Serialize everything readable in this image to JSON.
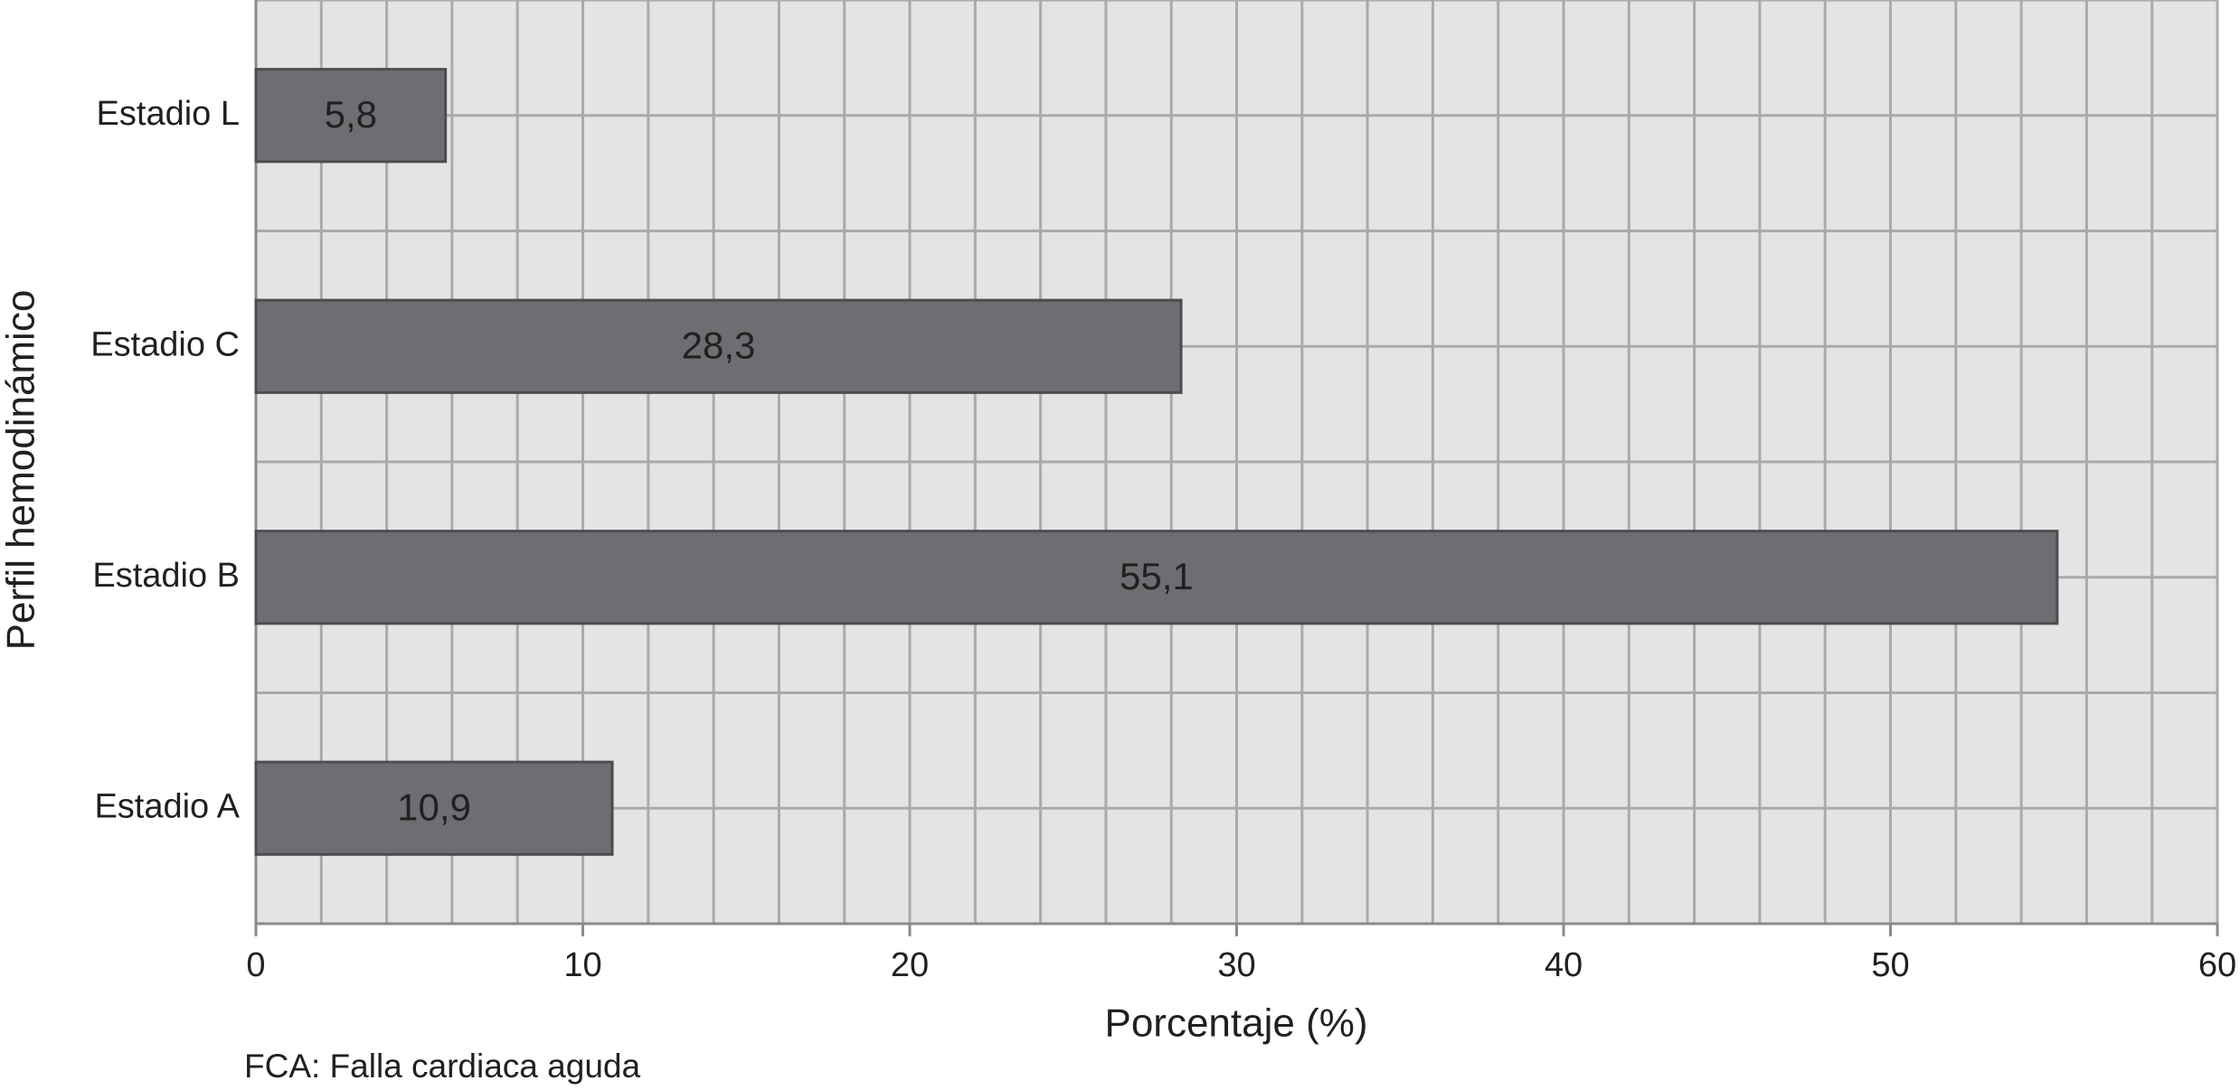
{
  "chart_data": {
    "type": "hbar",
    "x_label": "Porcentaje (%)",
    "y_label": "Perfil hemodinámico",
    "note": "FCA: Falla cardiaca aguda",
    "categories": [
      "Estadio L",
      "Estadio C",
      "Estadio B",
      "Estadio A"
    ],
    "values": [
      5.8,
      28.3,
      55.1,
      10.9
    ],
    "value_labels": [
      "5,8",
      "28,3",
      "55,1",
      "10,9"
    ],
    "color": "#6d6e71",
    "xlim": [
      0,
      60
    ],
    "xticks": [
      0,
      10,
      20,
      30,
      40,
      50,
      60
    ],
    "grid": true,
    "minor_grid": true
  }
}
